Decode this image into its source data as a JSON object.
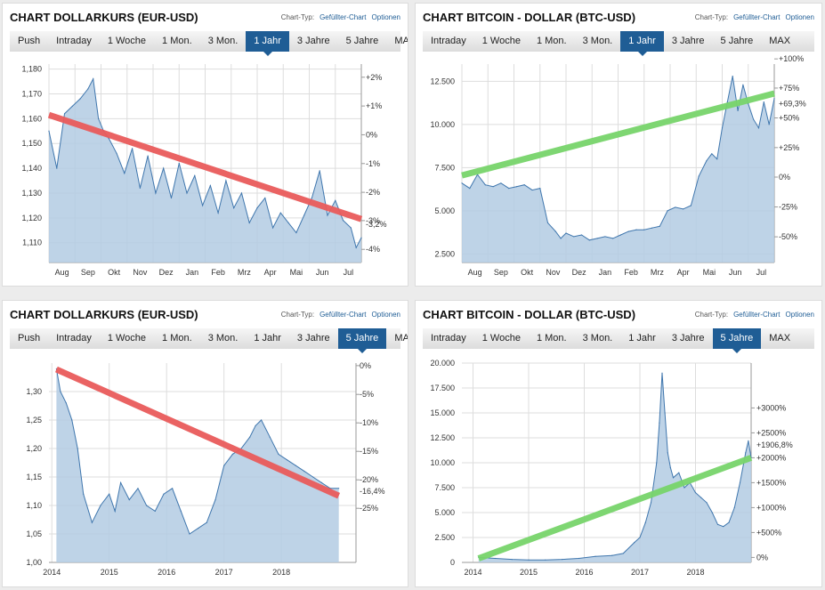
{
  "colors": {
    "accent": "#1f5d95",
    "area_fill": "#b3cbe3",
    "area_line": "#3f76ad",
    "grid": "#dddddd",
    "trend_down": "#e95b5b",
    "trend_up": "#77d46a",
    "neg_label": "#cc2222",
    "pos_label": "#2f9e2f"
  },
  "labels": {
    "chart_type": "Chart-Typ:",
    "filled_chart": "Gefüllter-Chart",
    "options": "Optionen"
  },
  "panels": [
    {
      "title": "CHART DOLLARKURS (EUR-USD)",
      "tabs": [
        "Push",
        "Intraday",
        "1 Woche",
        "1 Mon.",
        "3 Mon.",
        "1 Jahr",
        "3 Jahre",
        "5 Jahre",
        "MAX"
      ],
      "active_tab": "1 Jahr"
    },
    {
      "title": "CHART BITCOIN - DOLLAR (BTC-USD)",
      "tabs": [
        "Intraday",
        "1 Woche",
        "1 Mon.",
        "3 Mon.",
        "1 Jahr",
        "3 Jahre",
        "5 Jahre",
        "MAX"
      ],
      "active_tab": "1 Jahr"
    },
    {
      "title": "CHART DOLLARKURS (EUR-USD)",
      "tabs": [
        "Push",
        "Intraday",
        "1 Woche",
        "1 Mon.",
        "3 Mon.",
        "1 Jahr",
        "3 Jahre",
        "5 Jahre",
        "MAX"
      ],
      "active_tab": "5 Jahre"
    },
    {
      "title": "CHART BITCOIN - DOLLAR (BTC-USD)",
      "tabs": [
        "Intraday",
        "1 Woche",
        "1 Mon.",
        "3 Mon.",
        "1 Jahr",
        "3 Jahre",
        "5 Jahre",
        "MAX"
      ],
      "active_tab": "5 Jahre"
    }
  ],
  "chart_data": [
    {
      "type": "area",
      "ylim": [
        1.102,
        1.182
      ],
      "yticks": [
        "1,110",
        "1,120",
        "1,130",
        "1,140",
        "1,150",
        "1,160",
        "1,170",
        "1,180"
      ],
      "ytick_values": [
        1.11,
        1.12,
        1.13,
        1.14,
        1.15,
        1.16,
        1.17,
        1.18
      ],
      "right_ticks": [
        "+2%",
        "+1%",
        "0%",
        "-1%",
        "-2%",
        "-3%",
        "-4%"
      ],
      "right_tick_values": [
        1.1767,
        1.1651,
        1.1535,
        1.1419,
        1.1303,
        1.1189,
        1.1073
      ],
      "xlabels": [
        "Aug",
        "Sep",
        "Okt",
        "Nov",
        "Dez",
        "Jan",
        "Feb",
        "Mrz",
        "Apr",
        "Mai",
        "Jun",
        "Jul"
      ],
      "xrange": [
        0,
        12
      ],
      "x": [
        0,
        0.3,
        0.6,
        0.9,
        1.2,
        1.5,
        1.7,
        1.9,
        2.1,
        2.3,
        2.6,
        2.9,
        3.2,
        3.5,
        3.8,
        4.1,
        4.4,
        4.7,
        5.0,
        5.3,
        5.6,
        5.9,
        6.2,
        6.5,
        6.8,
        7.1,
        7.4,
        7.7,
        8.0,
        8.3,
        8.6,
        8.9,
        9.2,
        9.5,
        9.8,
        10.1,
        10.4,
        10.7,
        11.0,
        11.3,
        11.6,
        11.8,
        12.0
      ],
      "y": [
        1.155,
        1.14,
        1.162,
        1.165,
        1.168,
        1.172,
        1.176,
        1.16,
        1.155,
        1.152,
        1.146,
        1.138,
        1.148,
        1.132,
        1.145,
        1.13,
        1.14,
        1.128,
        1.142,
        1.13,
        1.137,
        1.125,
        1.133,
        1.122,
        1.135,
        1.124,
        1.13,
        1.118,
        1.124,
        1.128,
        1.116,
        1.122,
        1.118,
        1.114,
        1.121,
        1.128,
        1.139,
        1.121,
        1.127,
        1.119,
        1.116,
        1.108,
        1.112
      ],
      "trend": {
        "from": [
          0,
          1.1615
        ],
        "to": [
          12,
          1.1195
        ]
      },
      "change_label": "-3,2%",
      "change_value": 1.1175
    },
    {
      "type": "area",
      "ylim": [
        2000,
        13500
      ],
      "yticks": [
        "2.500",
        "5.000",
        "7.500",
        "10.000",
        "12.500"
      ],
      "ytick_values": [
        2500,
        5000,
        7500,
        10000,
        12500
      ],
      "right_ticks": [
        "+100%",
        "+75%",
        "+50%",
        "+25%",
        "0%",
        "-25%",
        "-50%"
      ],
      "right_tick_values": [
        13800,
        12110,
        10380,
        8660,
        6950,
        5220,
        3490
      ],
      "xlabels": [
        "Aug",
        "Sep",
        "Okt",
        "Nov",
        "Dez",
        "Jan",
        "Feb",
        "Mrz",
        "Apr",
        "Mai",
        "Jun",
        "Jul"
      ],
      "xrange": [
        0,
        12
      ],
      "x": [
        0,
        0.3,
        0.6,
        0.9,
        1.2,
        1.5,
        1.8,
        2.1,
        2.4,
        2.7,
        3.0,
        3.3,
        3.6,
        3.8,
        4.0,
        4.3,
        4.6,
        4.9,
        5.2,
        5.5,
        5.8,
        6.1,
        6.4,
        6.7,
        7.0,
        7.3,
        7.6,
        7.9,
        8.2,
        8.5,
        8.8,
        9.1,
        9.4,
        9.6,
        9.8,
        10.0,
        10.2,
        10.4,
        10.6,
        10.8,
        11.0,
        11.2,
        11.4,
        11.6,
        11.8,
        12.0
      ],
      "y": [
        6600,
        6300,
        7100,
        6500,
        6400,
        6600,
        6300,
        6400,
        6500,
        6200,
        6300,
        4300,
        3800,
        3400,
        3700,
        3500,
        3600,
        3300,
        3400,
        3500,
        3400,
        3600,
        3800,
        3900,
        3900,
        4000,
        4100,
        5000,
        5200,
        5100,
        5300,
        7000,
        7900,
        8300,
        8000,
        9800,
        11300,
        12800,
        10800,
        12300,
        11200,
        10300,
        9800,
        11300,
        10000,
        11500
      ],
      "trend": {
        "from": [
          0,
          7050
        ],
        "to": [
          12,
          11800
        ]
      },
      "change_label": "+69,3%",
      "change_value": 11200
    },
    {
      "type": "area",
      "ylim": [
        1.0,
        1.35
      ],
      "yticks": [
        "1,00",
        "1,05",
        "1,10",
        "1,15",
        "1,20",
        "1,25",
        "1,30"
      ],
      "ytick_values": [
        1.0,
        1.05,
        1.1,
        1.15,
        1.2,
        1.25,
        1.3
      ],
      "right_ticks": [
        "0%",
        "-5%",
        "-10%",
        "-15%",
        "-20%",
        "-25%"
      ],
      "right_tick_values": [
        1.3455,
        1.295,
        1.245,
        1.195,
        1.145,
        1.095
      ],
      "xlabels": [
        "2014",
        "2015",
        "2016",
        "2017",
        "2018"
      ],
      "xlabel_positions": [
        0,
        1,
        2,
        3,
        4
      ],
      "xrange": [
        -0.05,
        5.3
      ],
      "x": [
        0.08,
        0.15,
        0.25,
        0.35,
        0.45,
        0.55,
        0.7,
        0.85,
        1.0,
        1.1,
        1.2,
        1.35,
        1.5,
        1.65,
        1.8,
        1.95,
        2.1,
        2.25,
        2.4,
        2.55,
        2.7,
        2.85,
        3.0,
        3.15,
        3.3,
        3.45,
        3.55,
        3.65,
        3.8,
        3.95,
        4.1,
        4.25,
        4.4,
        4.55,
        4.7,
        4.85,
        5.0
      ],
      "y": [
        1.34,
        1.3,
        1.28,
        1.25,
        1.2,
        1.12,
        1.07,
        1.1,
        1.12,
        1.09,
        1.14,
        1.11,
        1.13,
        1.1,
        1.09,
        1.12,
        1.13,
        1.09,
        1.05,
        1.06,
        1.07,
        1.11,
        1.17,
        1.19,
        1.2,
        1.22,
        1.24,
        1.25,
        1.22,
        1.19,
        1.18,
        1.17,
        1.16,
        1.15,
        1.14,
        1.13,
        1.13
      ],
      "trend": {
        "from": [
          0.08,
          1.339
        ],
        "to": [
          5.0,
          1.117
        ]
      },
      "change_label": "-16,4%",
      "change_value": 1.125
    },
    {
      "type": "area",
      "ylim": [
        0,
        20000
      ],
      "yticks": [
        "0",
        "2.500",
        "5.000",
        "7.500",
        "10.000",
        "12.500",
        "15.000",
        "17.500",
        "20.000"
      ],
      "ytick_values": [
        0,
        2500,
        5000,
        7500,
        10000,
        12500,
        15000,
        17500,
        20000
      ],
      "right_ticks": [
        "0%",
        "+500%",
        "+1000%",
        "+1500%",
        "+2000%",
        "+2500%",
        "+3000%"
      ],
      "right_tick_values": [
        500,
        3000,
        5500,
        8000,
        10500,
        13000,
        15500
      ],
      "xlabels": [
        "2014",
        "2015",
        "2016",
        "2017",
        "2018"
      ],
      "xlabel_positions": [
        0,
        1,
        2,
        3,
        4
      ],
      "xrange": [
        -0.2,
        5.0
      ],
      "x": [
        0.1,
        0.4,
        0.7,
        1.0,
        1.3,
        1.6,
        1.9,
        2.2,
        2.5,
        2.7,
        2.9,
        3.0,
        3.1,
        3.2,
        3.3,
        3.35,
        3.4,
        3.45,
        3.5,
        3.55,
        3.6,
        3.7,
        3.8,
        3.9,
        4.0,
        4.1,
        4.2,
        4.3,
        4.4,
        4.5,
        4.6,
        4.7,
        4.8,
        4.9,
        4.95,
        5.0
      ],
      "y": [
        500,
        400,
        300,
        250,
        250,
        300,
        400,
        600,
        700,
        900,
        2000,
        2500,
        4000,
        6000,
        10000,
        14000,
        19000,
        15000,
        11000,
        9500,
        8500,
        9000,
        7500,
        8000,
        7000,
        6500,
        6000,
        5000,
        3800,
        3600,
        4000,
        5500,
        8000,
        11000,
        12200,
        10500
      ],
      "trend": {
        "from": [
          0.1,
          400
        ],
        "to": [
          5.0,
          10500
        ]
      },
      "change_label": "+1906,8%",
      "change_value": 11800
    }
  ]
}
